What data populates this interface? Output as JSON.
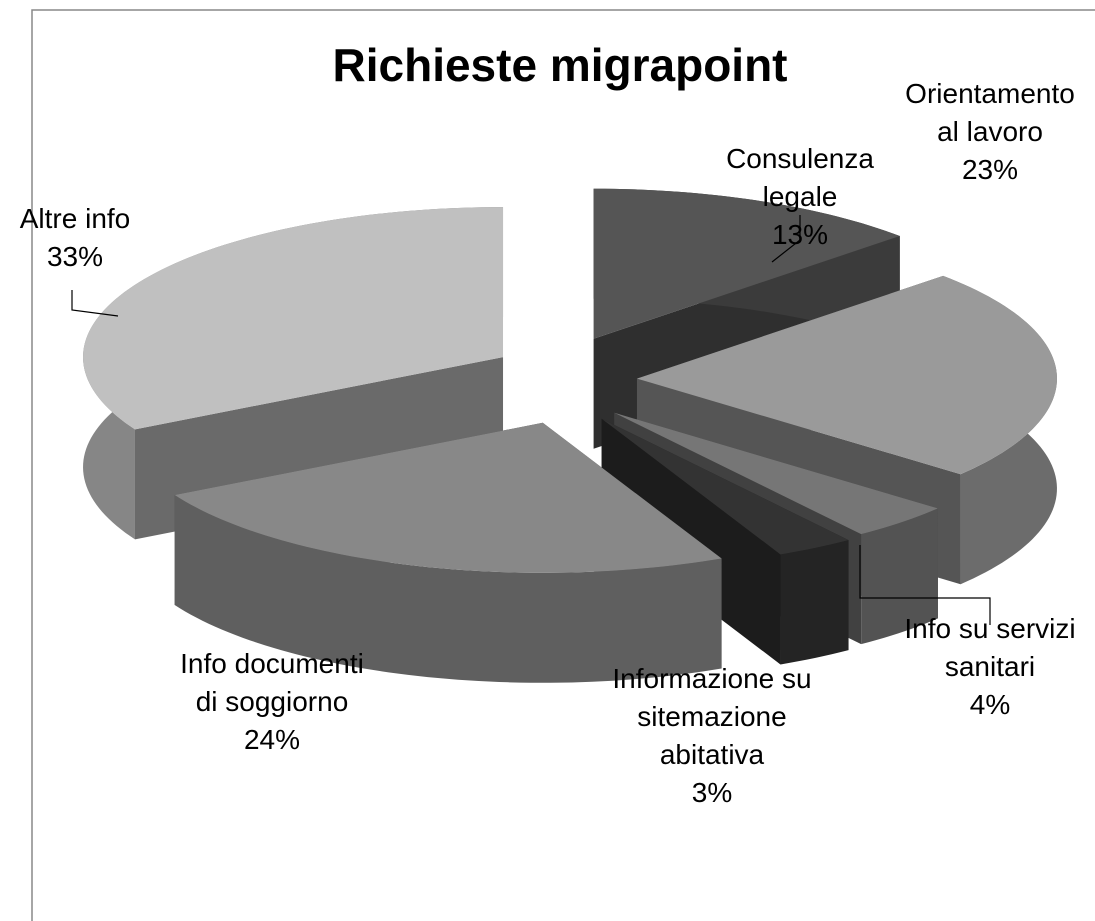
{
  "chart_data": {
    "type": "pie",
    "title": "Richieste migrapoint",
    "categories": [
      "Consulenza legale",
      "Orientamento al lavoro",
      "Info su servizi sanitari",
      "Informazione su sitemazione abitativa",
      "Info documenti di soggiorno",
      "Altre info"
    ],
    "values": [
      13,
      23,
      4,
      3,
      24,
      33
    ],
    "value_labels": [
      "13%",
      "23%",
      "4%",
      "3%",
      "24%",
      "33%"
    ],
    "colors": [
      "#555555",
      "#9a9a9a",
      "#767676",
      "#333333",
      "#888888",
      "#c0c0c0"
    ]
  }
}
